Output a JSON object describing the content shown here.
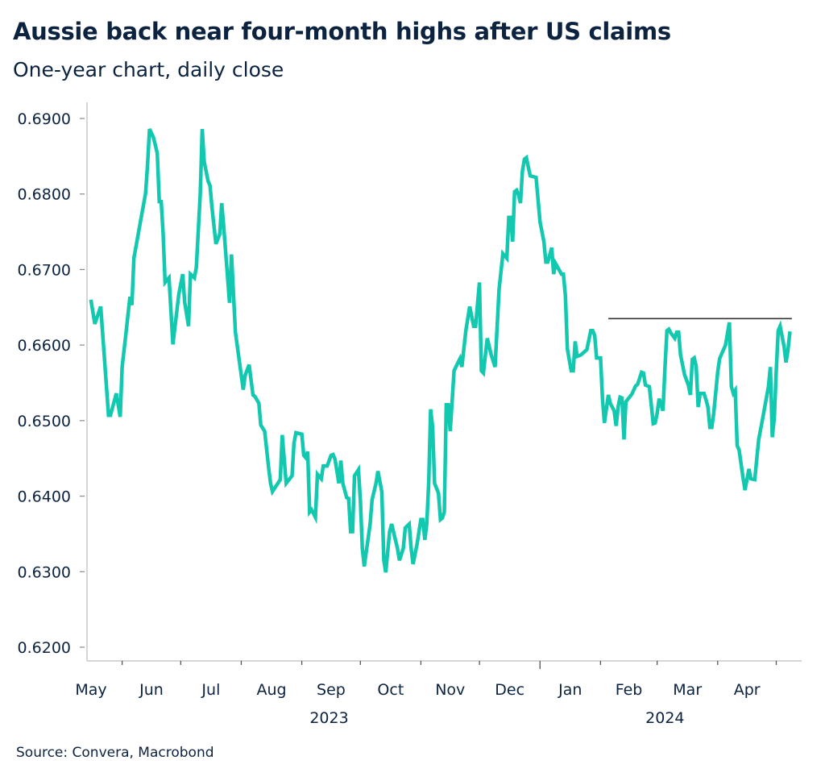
{
  "header": {
    "title": "Aussie back near four-month highs after US claims",
    "subtitle": "One-year chart, daily close"
  },
  "footer": {
    "source": "Source: Convera, Macrobond"
  },
  "chart_data": {
    "type": "line",
    "title": "Aussie back near four-month highs after US claims",
    "subtitle": "One-year chart, daily close",
    "xlabel": "",
    "ylabel": "",
    "ylim": [
      0.62,
      0.69
    ],
    "xlim": [
      "2023-05-14",
      "2024-05-14"
    ],
    "y_ticks": [
      "0.6200",
      "0.6300",
      "0.6400",
      "0.6500",
      "0.6600",
      "0.6700",
      "0.6800",
      "0.6900"
    ],
    "x_month_labels": [
      "May",
      "Jun",
      "Jul",
      "Aug",
      "Sep",
      "Oct",
      "Nov",
      "Dec",
      "Jan",
      "Feb",
      "Mar",
      "Apr"
    ],
    "x_year_labels": [
      "2023",
      "2024"
    ],
    "grid": false,
    "legend": "none",
    "colors": {
      "series": "#12c9b0",
      "reference_line": "#333333",
      "text": "#0c2340",
      "axis": "#c8c8c8"
    },
    "series": [
      {
        "x": [
          "2023-05-16",
          "2023-05-18",
          "2023-05-21",
          "2023-05-25",
          "2023-05-26",
          "2023-05-29",
          "2023-05-31",
          "2023-06-01",
          "2023-06-03",
          "2023-06-05",
          "2023-06-06",
          "2023-06-07",
          "2023-06-10",
          "2023-06-13",
          "2023-06-14",
          "2023-06-15",
          "2023-06-17",
          "2023-06-19",
          "2023-06-20",
          "2023-06-21",
          "2023-06-22",
          "2023-06-23",
          "2023-06-25",
          "2023-06-27",
          "2023-06-30",
          "2023-07-02",
          "2023-07-03",
          "2023-07-05",
          "2023-07-06",
          "2023-07-08",
          "2023-07-09",
          "2023-07-11",
          "2023-07-12",
          "2023-07-13",
          "2023-07-15",
          "2023-07-16",
          "2023-07-17",
          "2023-07-19",
          "2023-07-21",
          "2023-07-22",
          "2023-07-23",
          "2023-07-26",
          "2023-07-27",
          "2023-07-29",
          "2023-08-02",
          "2023-08-03",
          "2023-08-05",
          "2023-08-07",
          "2023-08-08",
          "2023-08-10",
          "2023-08-11",
          "2023-08-13",
          "2023-08-15",
          "2023-08-16",
          "2023-08-17",
          "2023-08-21",
          "2023-08-22",
          "2023-08-24",
          "2023-08-27",
          "2023-08-28",
          "2023-08-29",
          "2023-09-01",
          "2023-09-02",
          "2023-09-03",
          "2023-09-04",
          "2023-09-05",
          "2023-09-06",
          "2023-09-08",
          "2023-09-09",
          "2023-09-11",
          "2023-09-12",
          "2023-09-14",
          "2023-09-16",
          "2023-09-17",
          "2023-09-18",
          "2023-09-20",
          "2023-09-21",
          "2023-09-22",
          "2023-09-24",
          "2023-09-25",
          "2023-09-26",
          "2023-09-27",
          "2023-09-28",
          "2023-09-30",
          "2023-10-01",
          "2023-10-02",
          "2023-10-03",
          "2023-10-06",
          "2023-10-07",
          "2023-10-09",
          "2023-10-10",
          "2023-10-12",
          "2023-10-13",
          "2023-10-14",
          "2023-10-16",
          "2023-10-17",
          "2023-10-20",
          "2023-10-21",
          "2023-10-23",
          "2023-10-24",
          "2023-10-26",
          "2023-10-27",
          "2023-10-28",
          "2023-10-30",
          "2023-11-01",
          "2023-11-02",
          "2023-11-03",
          "2023-11-04",
          "2023-11-05",
          "2023-11-06",
          "2023-11-07",
          "2023-11-08",
          "2023-11-10",
          "2023-11-11",
          "2023-11-12",
          "2023-11-13",
          "2023-11-14",
          "2023-11-15",
          "2023-11-16",
          "2023-11-18",
          "2023-11-20",
          "2023-11-21",
          "2023-11-22",
          "2023-11-24",
          "2023-11-26",
          "2023-11-28",
          "2023-11-29",
          "2023-12-01",
          "2023-12-02",
          "2023-12-03",
          "2023-12-05",
          "2023-12-07",
          "2023-12-09",
          "2023-12-11",
          "2023-12-13",
          "2023-12-15",
          "2023-12-16",
          "2023-12-17",
          "2023-12-18",
          "2023-12-19",
          "2023-12-20",
          "2023-12-21",
          "2023-12-22",
          "2023-12-23",
          "2023-12-24",
          "2023-12-25",
          "2023-12-27",
          "2023-12-30",
          "2024-01-01",
          "2024-01-03",
          "2024-01-04",
          "2024-01-05",
          "2024-01-07",
          "2024-01-08",
          "2024-01-09",
          "2024-01-12",
          "2024-01-13",
          "2024-01-14",
          "2024-01-15",
          "2024-01-17",
          "2024-01-18",
          "2024-01-19",
          "2024-01-20",
          "2024-01-22",
          "2024-01-25",
          "2024-01-27",
          "2024-01-28",
          "2024-01-29",
          "2024-01-30",
          "2024-02-01",
          "2024-02-02",
          "2024-02-03",
          "2024-02-05",
          "2024-02-06",
          "2024-02-08",
          "2024-02-09",
          "2024-02-10",
          "2024-02-11",
          "2024-02-12",
          "2024-02-13",
          "2024-02-14",
          "2024-02-17",
          "2024-02-19",
          "2024-02-20",
          "2024-02-22",
          "2024-02-23",
          "2024-02-24",
          "2024-02-26",
          "2024-02-28",
          "2024-02-29",
          "2024-03-01",
          "2024-03-02",
          "2024-03-04",
          "2024-03-05",
          "2024-03-06",
          "2024-03-07",
          "2024-03-08",
          "2024-03-10",
          "2024-03-11",
          "2024-03-12",
          "2024-03-13",
          "2024-03-15",
          "2024-03-17",
          "2024-03-18",
          "2024-03-19",
          "2024-03-20",
          "2024-03-21",
          "2024-03-22",
          "2024-03-23",
          "2024-03-25",
          "2024-03-26",
          "2024-03-27",
          "2024-03-28",
          "2024-03-29",
          "2024-03-30",
          "2024-04-01",
          "2024-04-02",
          "2024-04-03",
          "2024-04-05",
          "2024-04-07",
          "2024-04-08",
          "2024-04-09",
          "2024-04-10",
          "2024-04-11",
          "2024-04-12",
          "2024-04-14",
          "2024-04-15",
          "2024-04-17",
          "2024-04-18",
          "2024-04-20",
          "2024-04-21",
          "2024-04-22",
          "2024-04-24",
          "2024-04-27",
          "2024-04-28",
          "2024-04-29",
          "2024-04-30",
          "2024-05-01",
          "2024-05-02",
          "2024-05-03",
          "2024-05-05",
          "2024-05-06",
          "2024-05-07",
          "2024-05-08"
        ],
        "values": [
          0.666,
          0.6628,
          0.6651,
          0.6507,
          0.6507,
          0.6536,
          0.6505,
          0.6571,
          0.6617,
          0.6664,
          0.6653,
          0.6715,
          0.6758,
          0.6801,
          0.6838,
          0.6886,
          0.6875,
          0.6854,
          0.679,
          0.679,
          0.6747,
          0.6683,
          0.6689,
          0.6601,
          0.6667,
          0.6694,
          0.6657,
          0.6625,
          0.6694,
          0.6689,
          0.6703,
          0.6801,
          0.6886,
          0.6843,
          0.6817,
          0.6811,
          0.6782,
          0.6734,
          0.6747,
          0.6788,
          0.6758,
          0.6656,
          0.672,
          0.6617,
          0.6541,
          0.656,
          0.6574,
          0.6534,
          0.6532,
          0.6523,
          0.6494,
          0.6486,
          0.6438,
          0.6417,
          0.6406,
          0.6422,
          0.6481,
          0.6417,
          0.6427,
          0.647,
          0.6484,
          0.6482,
          0.6454,
          0.6451,
          0.6459,
          0.6379,
          0.6382,
          0.6372,
          0.6429,
          0.6423,
          0.644,
          0.644,
          0.6454,
          0.6455,
          0.6449,
          0.6417,
          0.6447,
          0.6417,
          0.6398,
          0.6397,
          0.6353,
          0.6353,
          0.6427,
          0.6435,
          0.6395,
          0.6331,
          0.6307,
          0.6363,
          0.6395,
          0.6417,
          0.6433,
          0.6406,
          0.6315,
          0.6299,
          0.6353,
          0.6363,
          0.6331,
          0.6315,
          0.6331,
          0.6358,
          0.6363,
          0.6331,
          0.631,
          0.6336,
          0.6369,
          0.6369,
          0.6342,
          0.6363,
          0.6417,
          0.6515,
          0.6491,
          0.6417,
          0.6404,
          0.6369,
          0.6371,
          0.6379,
          0.6521,
          0.6521,
          0.6486,
          0.6566,
          0.6577,
          0.6582,
          0.6571,
          0.6619,
          0.6651,
          0.6625,
          0.6625,
          0.6683,
          0.6566,
          0.6563,
          0.6609,
          0.6587,
          0.6571,
          0.6673,
          0.6721,
          0.6715,
          0.6769,
          0.6769,
          0.6737,
          0.6803,
          0.6805,
          0.6799,
          0.6788,
          0.683,
          0.6846,
          0.6848,
          0.6824,
          0.6822,
          0.6763,
          0.6737,
          0.671,
          0.671,
          0.6729,
          0.6694,
          0.6708,
          0.6694,
          0.6694,
          0.6665,
          0.6595,
          0.6566,
          0.6566,
          0.6605,
          0.6585,
          0.6587,
          0.6594,
          0.6619,
          0.6619,
          0.6613,
          0.6583,
          0.6583,
          0.6529,
          0.6497,
          0.6534,
          0.6523,
          0.6513,
          0.6493,
          0.6518,
          0.6531,
          0.653,
          0.6475,
          0.6525,
          0.6535,
          0.6546,
          0.6548,
          0.6564,
          0.6563,
          0.6547,
          0.6545,
          0.6496,
          0.6497,
          0.651,
          0.6529,
          0.6513,
          0.6571,
          0.6619,
          0.6621,
          0.6616,
          0.6609,
          0.6617,
          0.6617,
          0.6587,
          0.6561,
          0.6547,
          0.6534,
          0.6581,
          0.6583,
          0.6572,
          0.6518,
          0.6536,
          0.6536,
          0.6528,
          0.6518,
          0.6491,
          0.6491,
          0.651,
          0.6564,
          0.6582,
          0.6588,
          0.66,
          0.663,
          0.6545,
          0.6536,
          0.654,
          0.6467,
          0.6461,
          0.6424,
          0.6408,
          0.6436,
          0.6423,
          0.6422,
          0.6449,
          0.6475,
          0.6502,
          0.6545,
          0.6571,
          0.6478,
          0.6504,
          0.6566,
          0.6619,
          0.6625,
          0.6598,
          0.6577,
          0.6593,
          0.6618
        ]
      }
    ],
    "reference_line": {
      "value": 0.6635,
      "from": "2024-02-05",
      "to": "2024-05-09"
    }
  }
}
